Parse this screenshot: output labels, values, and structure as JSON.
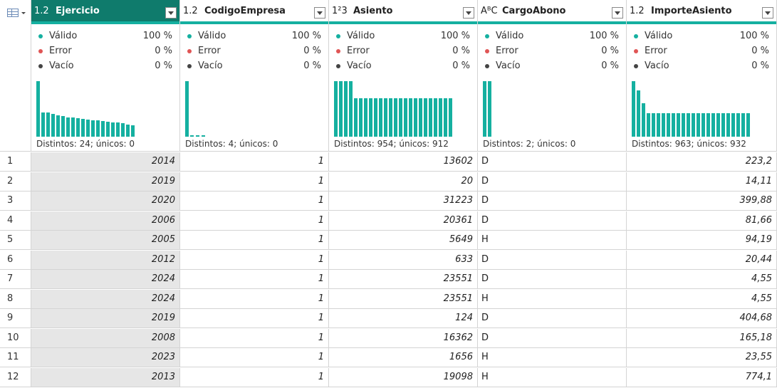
{
  "stat_labels": [
    "Válido",
    "Error",
    "Vacío"
  ],
  "stat_colors": [
    "#15b0a0",
    "#e05555",
    "#444444"
  ],
  "columns": [
    {
      "type_icon": "1.2",
      "name": "Ejercicio",
      "selected": true,
      "valid": "100 %",
      "error": "0 %",
      "empty": "0 %",
      "distinct": "Distintos: 24; únicos: 0",
      "histogram": [
        1.0,
        0.44,
        0.43,
        0.41,
        0.39,
        0.37,
        0.35,
        0.34,
        0.33,
        0.32,
        0.31,
        0.3,
        0.29,
        0.28,
        0.27,
        0.26,
        0.25,
        0.24,
        0.22,
        0.21
      ]
    },
    {
      "type_icon": "1.2",
      "name": "CodigoEmpresa",
      "selected": false,
      "valid": "100 %",
      "error": "0 %",
      "empty": "0 %",
      "distinct": "Distintos: 4; únicos: 0",
      "histogram": [
        1.0,
        0.02,
        0.02,
        0.02
      ]
    },
    {
      "type_icon": "1²3",
      "name": "Asiento",
      "selected": false,
      "valid": "100 %",
      "error": "0 %",
      "empty": "0 %",
      "distinct": "Distintos: 954; únicos: 912",
      "histogram": [
        1.0,
        1.0,
        1.0,
        1.0,
        0.69,
        0.69,
        0.69,
        0.69,
        0.69,
        0.69,
        0.69,
        0.69,
        0.69,
        0.69,
        0.69,
        0.69,
        0.69,
        0.69,
        0.69,
        0.69,
        0.69,
        0.69,
        0.69,
        0.69
      ]
    },
    {
      "type_icon": "AᴮC",
      "name": "CargoAbono",
      "selected": false,
      "valid": "100 %",
      "error": "0 %",
      "empty": "0 %",
      "distinct": "Distintos: 2; únicos: 0",
      "histogram": [
        1.0,
        1.0
      ]
    },
    {
      "type_icon": "1.2",
      "name": "ImporteAsiento",
      "selected": false,
      "valid": "100 %",
      "error": "0 %",
      "empty": "0 %",
      "distinct": "Distintos: 963; únicos: 932",
      "histogram": [
        1.0,
        0.83,
        0.6,
        0.42,
        0.42,
        0.42,
        0.42,
        0.42,
        0.42,
        0.42,
        0.42,
        0.42,
        0.42,
        0.42,
        0.42,
        0.42,
        0.42,
        0.42,
        0.42,
        0.42,
        0.42,
        0.42,
        0.42,
        0.42
      ]
    }
  ],
  "rows": [
    [
      "1",
      "2014",
      "1",
      "13602",
      "D",
      "223,2"
    ],
    [
      "2",
      "2019",
      "1",
      "20",
      "D",
      "14,11"
    ],
    [
      "3",
      "2020",
      "1",
      "31223",
      "D",
      "399,88"
    ],
    [
      "4",
      "2006",
      "1",
      "20361",
      "D",
      "81,66"
    ],
    [
      "5",
      "2005",
      "1",
      "5649",
      "H",
      "94,19"
    ],
    [
      "6",
      "2012",
      "1",
      "633",
      "D",
      "20,44"
    ],
    [
      "7",
      "2024",
      "1",
      "23551",
      "D",
      "4,55"
    ],
    [
      "8",
      "2024",
      "1",
      "23551",
      "H",
      "4,55"
    ],
    [
      "9",
      "2019",
      "1",
      "124",
      "D",
      "404,68"
    ],
    [
      "10",
      "2008",
      "1",
      "16362",
      "D",
      "165,18"
    ],
    [
      "11",
      "2023",
      "1",
      "1656",
      "H",
      "23,55"
    ],
    [
      "12",
      "2013",
      "1",
      "19098",
      "H",
      "774,1"
    ]
  ]
}
